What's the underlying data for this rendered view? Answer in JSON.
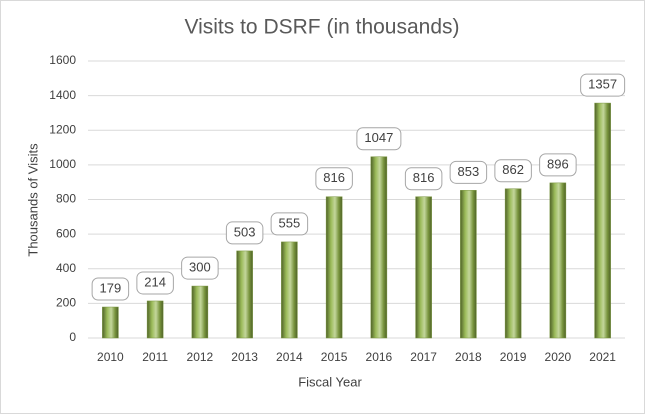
{
  "chart_data": {
    "type": "bar",
    "title": "Visits to DSRF (in thousands)",
    "x_label": "Fiscal Year",
    "y_label": "Thousands of Visits",
    "categories": [
      "2010",
      "2011",
      "2012",
      "2013",
      "2014",
      "2015",
      "2016",
      "2017",
      "2018",
      "2019",
      "2020",
      "2021"
    ],
    "values": [
      179,
      214,
      300,
      503,
      555,
      816,
      1047,
      816,
      853,
      862,
      896,
      1357
    ],
    "color": "#77933c",
    "ylim": [
      0,
      1600
    ],
    "yticks": [
      0,
      200,
      400,
      600,
      800,
      1000,
      1200,
      1400,
      1600
    ],
    "grid": true
  }
}
